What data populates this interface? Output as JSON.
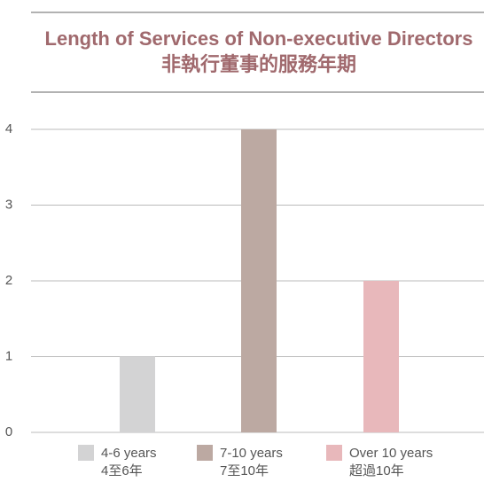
{
  "chart_data": {
    "type": "bar",
    "title": "Length of Services of Non-executive Directors",
    "subtitle": "非執行董事的服務年期",
    "categories": [
      [
        "4-6 years",
        "4至6年"
      ],
      [
        "7-10 years",
        "7至10年"
      ],
      [
        "Over 10 years",
        "超過10年"
      ]
    ],
    "values": [
      1,
      4,
      2
    ],
    "colors": [
      "#d3d3d4",
      "#bca9a2",
      "#e8b8bb"
    ],
    "ylim": [
      0,
      4
    ],
    "yticks": [
      0,
      1,
      2,
      3,
      4
    ],
    "grid": true,
    "legend": "bottom"
  }
}
